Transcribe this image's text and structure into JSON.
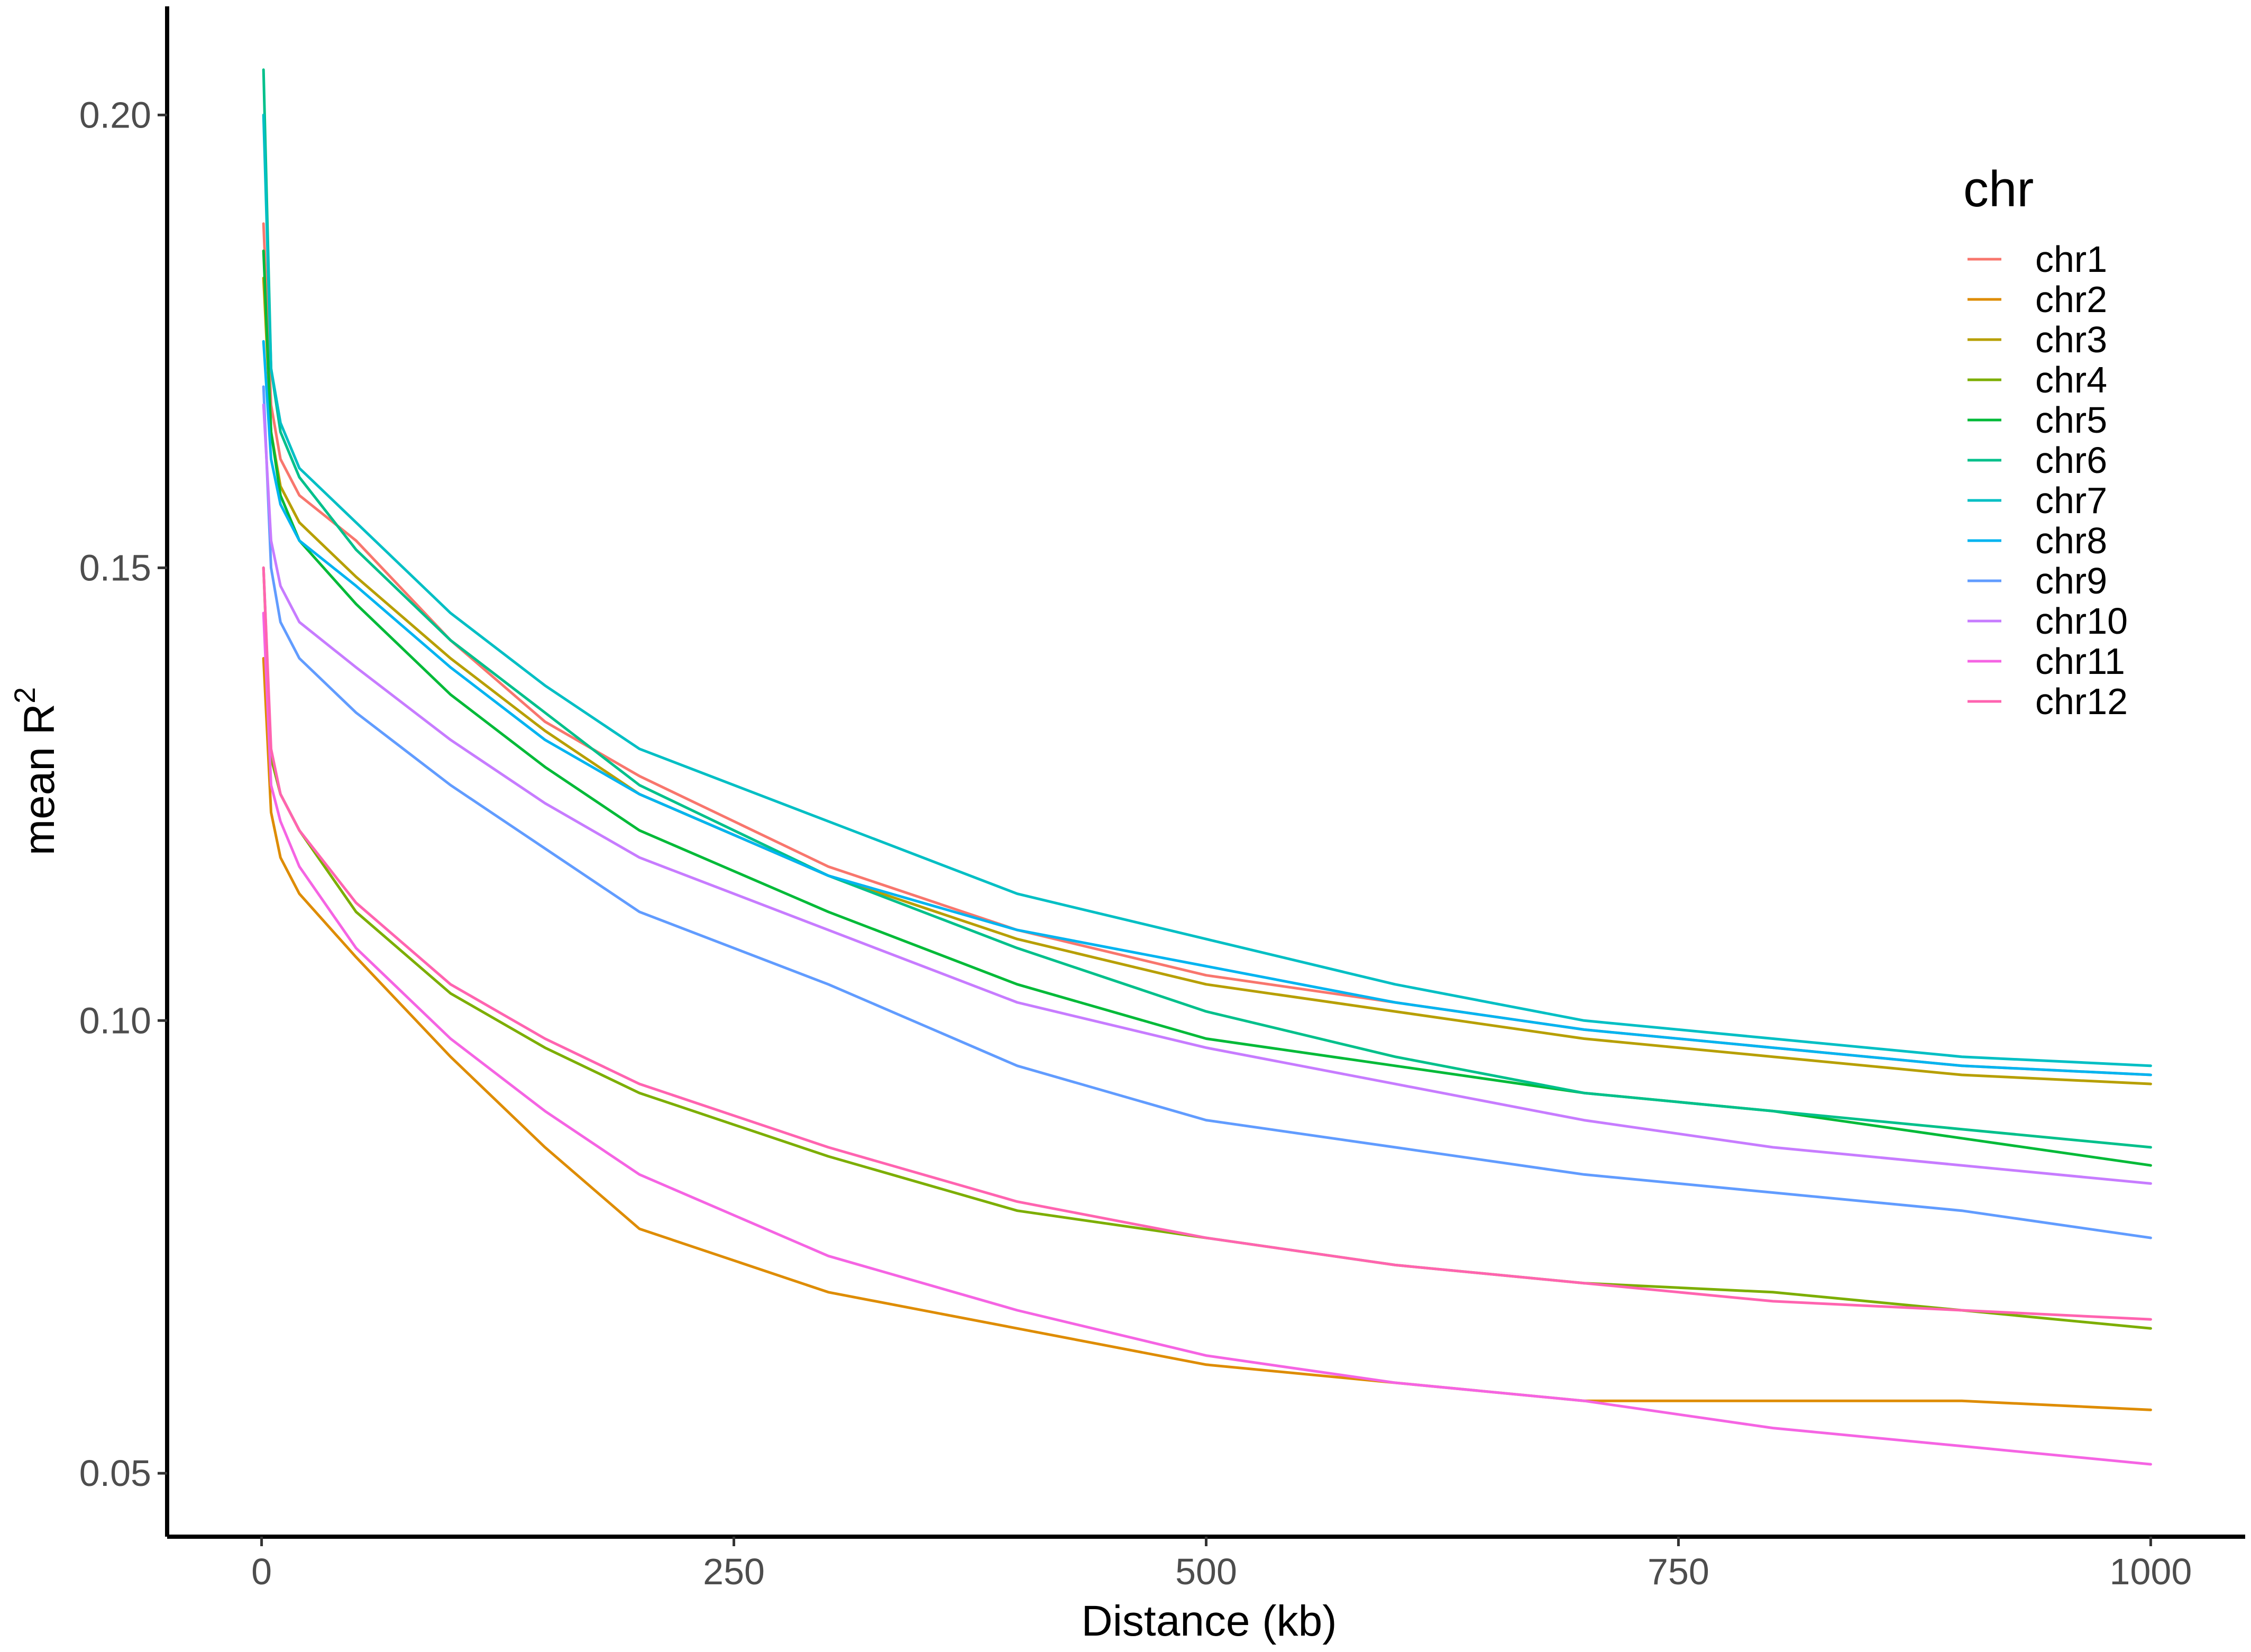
{
  "chart_data": {
    "type": "line",
    "title": "",
    "xlabel": "Distance (kb)",
    "ylabel": "mean R",
    "ylabel_superscript": "2",
    "xlim": [
      -50,
      1050
    ],
    "ylim": [
      0.043,
      0.212
    ],
    "x_ticks": [
      0,
      250,
      500,
      750,
      1000
    ],
    "x_tick_labels": [
      "0",
      "250",
      "500",
      "750",
      "1000"
    ],
    "y_ticks": [
      0.05,
      0.1,
      0.15,
      0.2
    ],
    "y_tick_labels": [
      "0.05",
      "0.10",
      "0.15",
      "0.20"
    ],
    "grid": false,
    "legend": {
      "title": "chr",
      "position": "right"
    },
    "x": [
      1,
      5,
      10,
      20,
      50,
      100,
      150,
      200,
      300,
      400,
      500,
      600,
      700,
      800,
      900,
      1000
    ],
    "series": [
      {
        "name": "chr1",
        "color": "#F8766D",
        "values": [
          0.188,
          0.168,
          0.162,
          0.158,
          0.153,
          0.142,
          0.133,
          0.127,
          0.117,
          0.11,
          0.105,
          0.102,
          0.099,
          0.097,
          0.095,
          0.094
        ]
      },
      {
        "name": "chr2",
        "color": "#DE8C00",
        "values": [
          0.14,
          0.123,
          0.118,
          0.114,
          0.107,
          0.096,
          0.086,
          0.077,
          0.07,
          0.066,
          0.062,
          0.06,
          0.058,
          0.058,
          0.058,
          0.057
        ]
      },
      {
        "name": "chr3",
        "color": "#B79F00",
        "values": [
          0.182,
          0.165,
          0.159,
          0.155,
          0.149,
          0.14,
          0.132,
          0.125,
          0.116,
          0.109,
          0.104,
          0.101,
          0.098,
          0.096,
          0.094,
          0.093
        ]
      },
      {
        "name": "chr4",
        "color": "#7CAE00",
        "values": [
          0.15,
          0.129,
          0.125,
          0.121,
          0.112,
          0.103,
          0.097,
          0.092,
          0.085,
          0.079,
          0.076,
          0.073,
          0.071,
          0.07,
          0.068,
          0.066
        ]
      },
      {
        "name": "chr5",
        "color": "#00BA38",
        "values": [
          0.185,
          0.165,
          0.158,
          0.153,
          0.146,
          0.136,
          0.128,
          0.121,
          0.112,
          0.104,
          0.098,
          0.095,
          0.092,
          0.09,
          0.087,
          0.084
        ]
      },
      {
        "name": "chr6",
        "color": "#00C08B",
        "values": [
          0.205,
          0.172,
          0.165,
          0.16,
          0.152,
          0.142,
          0.134,
          0.126,
          0.116,
          0.108,
          0.101,
          0.096,
          0.092,
          0.09,
          0.088,
          0.086
        ]
      },
      {
        "name": "chr7",
        "color": "#00BFC4",
        "values": [
          0.2,
          0.172,
          0.166,
          0.161,
          0.155,
          0.145,
          0.137,
          0.13,
          0.122,
          0.114,
          0.109,
          0.104,
          0.1,
          0.098,
          0.096,
          0.095
        ]
      },
      {
        "name": "chr8",
        "color": "#00B4F0",
        "values": [
          0.175,
          0.162,
          0.157,
          0.153,
          0.148,
          0.139,
          0.131,
          0.125,
          0.116,
          0.11,
          0.106,
          0.102,
          0.099,
          0.097,
          0.095,
          0.094
        ]
      },
      {
        "name": "chr9",
        "color": "#619CFF",
        "values": [
          0.17,
          0.15,
          0.144,
          0.14,
          0.134,
          0.126,
          0.119,
          0.112,
          0.104,
          0.095,
          0.089,
          0.086,
          0.083,
          0.081,
          0.079,
          0.076
        ]
      },
      {
        "name": "chr10",
        "color": "#C77CFF",
        "values": [
          0.168,
          0.153,
          0.148,
          0.144,
          0.139,
          0.131,
          0.124,
          0.118,
          0.11,
          0.102,
          0.097,
          0.093,
          0.089,
          0.086,
          0.084,
          0.082
        ]
      },
      {
        "name": "chr11",
        "color": "#F564E3",
        "values": [
          0.145,
          0.126,
          0.122,
          0.117,
          0.108,
          0.098,
          0.09,
          0.083,
          0.074,
          0.068,
          0.063,
          0.06,
          0.058,
          0.055,
          0.053,
          0.051
        ]
      },
      {
        "name": "chr12",
        "color": "#FF64B0",
        "values": [
          0.15,
          0.13,
          0.125,
          0.121,
          0.113,
          0.104,
          0.098,
          0.093,
          0.086,
          0.08,
          0.076,
          0.073,
          0.071,
          0.069,
          0.068,
          0.067
        ]
      }
    ]
  }
}
